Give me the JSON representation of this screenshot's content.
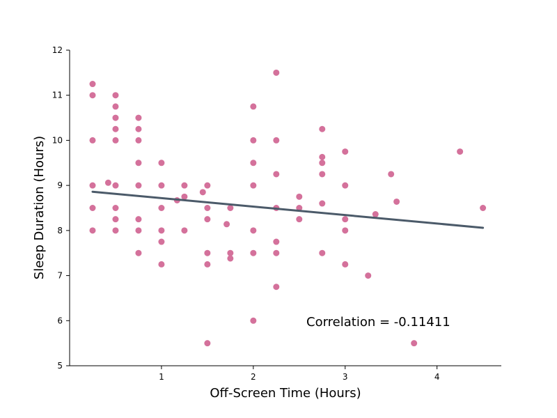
{
  "chart_data": {
    "type": "scatter",
    "title": "",
    "xlabel": "Off-Screen Time (Hours)",
    "ylabel": "Sleep Duration (Hours)",
    "xlim": [
      0,
      4.7
    ],
    "ylim": [
      5,
      12
    ],
    "xticks": [
      "1",
      "2",
      "3",
      "4"
    ],
    "yticks": [
      "5",
      "6",
      "7",
      "8",
      "9",
      "10",
      "11",
      "12"
    ],
    "grid": false,
    "colors": {
      "points": "#d4719b",
      "trend": "#4b5a69"
    },
    "annotation": "Correlation = -0.11411",
    "trendline": {
      "x": [
        0.25,
        4.5
      ],
      "y": [
        8.86,
        8.06
      ]
    },
    "points": [
      {
        "x": 0.25,
        "y": 11.25
      },
      {
        "x": 0.25,
        "y": 11.0
      },
      {
        "x": 0.25,
        "y": 10.0
      },
      {
        "x": 0.25,
        "y": 9.0
      },
      {
        "x": 0.25,
        "y": 8.5
      },
      {
        "x": 0.25,
        "y": 8.0
      },
      {
        "x": 0.42,
        "y": 9.06
      },
      {
        "x": 0.5,
        "y": 11.0
      },
      {
        "x": 0.5,
        "y": 10.75
      },
      {
        "x": 0.5,
        "y": 10.5
      },
      {
        "x": 0.5,
        "y": 10.25
      },
      {
        "x": 0.5,
        "y": 10.0
      },
      {
        "x": 0.5,
        "y": 9.0
      },
      {
        "x": 0.5,
        "y": 8.5
      },
      {
        "x": 0.5,
        "y": 8.25
      },
      {
        "x": 0.5,
        "y": 8.0
      },
      {
        "x": 0.75,
        "y": 10.5
      },
      {
        "x": 0.75,
        "y": 10.25
      },
      {
        "x": 0.75,
        "y": 10.0
      },
      {
        "x": 0.75,
        "y": 9.5
      },
      {
        "x": 0.75,
        "y": 9.0
      },
      {
        "x": 0.75,
        "y": 8.25
      },
      {
        "x": 0.75,
        "y": 8.0
      },
      {
        "x": 0.75,
        "y": 7.5
      },
      {
        "x": 1.0,
        "y": 9.5
      },
      {
        "x": 1.0,
        "y": 9.0
      },
      {
        "x": 1.0,
        "y": 8.5
      },
      {
        "x": 1.0,
        "y": 8.0
      },
      {
        "x": 1.0,
        "y": 7.75
      },
      {
        "x": 1.0,
        "y": 7.25
      },
      {
        "x": 1.17,
        "y": 8.67
      },
      {
        "x": 1.25,
        "y": 9.0
      },
      {
        "x": 1.25,
        "y": 8.75
      },
      {
        "x": 1.25,
        "y": 8.0
      },
      {
        "x": 1.45,
        "y": 8.85
      },
      {
        "x": 1.5,
        "y": 9.0
      },
      {
        "x": 1.5,
        "y": 8.5
      },
      {
        "x": 1.5,
        "y": 8.25
      },
      {
        "x": 1.5,
        "y": 7.5
      },
      {
        "x": 1.5,
        "y": 7.25
      },
      {
        "x": 1.5,
        "y": 5.5
      },
      {
        "x": 1.71,
        "y": 8.14
      },
      {
        "x": 1.75,
        "y": 8.5
      },
      {
        "x": 1.75,
        "y": 7.5
      },
      {
        "x": 1.75,
        "y": 7.38
      },
      {
        "x": 2.0,
        "y": 10.75
      },
      {
        "x": 2.0,
        "y": 10.0
      },
      {
        "x": 2.0,
        "y": 9.5
      },
      {
        "x": 2.0,
        "y": 9.0
      },
      {
        "x": 2.0,
        "y": 8.0
      },
      {
        "x": 2.0,
        "y": 7.5
      },
      {
        "x": 2.0,
        "y": 6.0
      },
      {
        "x": 2.25,
        "y": 11.5
      },
      {
        "x": 2.25,
        "y": 10.0
      },
      {
        "x": 2.25,
        "y": 9.25
      },
      {
        "x": 2.25,
        "y": 8.5
      },
      {
        "x": 2.25,
        "y": 7.75
      },
      {
        "x": 2.25,
        "y": 7.5
      },
      {
        "x": 2.25,
        "y": 6.75
      },
      {
        "x": 2.5,
        "y": 8.75
      },
      {
        "x": 2.5,
        "y": 8.5
      },
      {
        "x": 2.5,
        "y": 8.25
      },
      {
        "x": 2.75,
        "y": 10.25
      },
      {
        "x": 2.75,
        "y": 9.63
      },
      {
        "x": 2.75,
        "y": 9.5
      },
      {
        "x": 2.75,
        "y": 9.25
      },
      {
        "x": 2.75,
        "y": 8.6
      },
      {
        "x": 2.75,
        "y": 7.5
      },
      {
        "x": 3.0,
        "y": 9.75
      },
      {
        "x": 3.0,
        "y": 9.0
      },
      {
        "x": 3.0,
        "y": 8.25
      },
      {
        "x": 3.0,
        "y": 8.0
      },
      {
        "x": 3.0,
        "y": 7.25
      },
      {
        "x": 3.25,
        "y": 7.0
      },
      {
        "x": 3.33,
        "y": 8.36
      },
      {
        "x": 3.5,
        "y": 9.25
      },
      {
        "x": 3.56,
        "y": 8.64
      },
      {
        "x": 3.75,
        "y": 5.5
      },
      {
        "x": 4.25,
        "y": 9.75
      },
      {
        "x": 4.5,
        "y": 8.5
      }
    ]
  }
}
